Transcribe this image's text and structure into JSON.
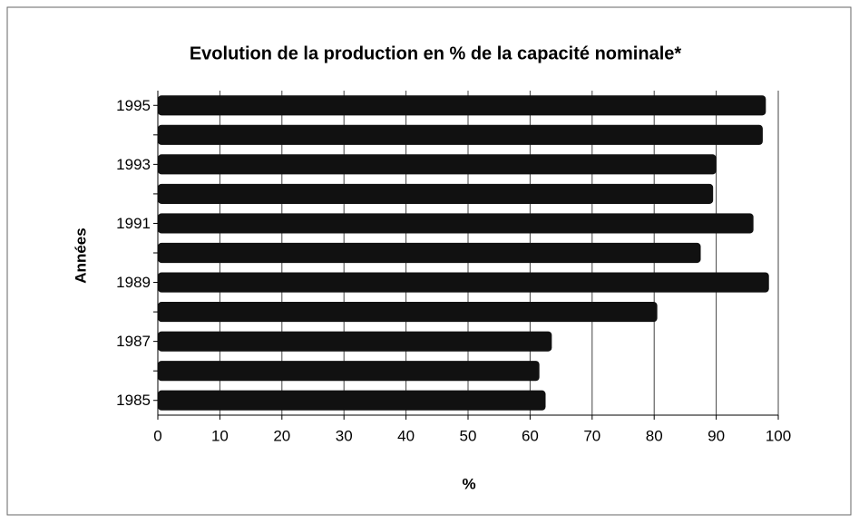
{
  "chart_data": {
    "type": "bar",
    "orientation": "horizontal",
    "title": "Evolution de la production en % de la capacité nominale*",
    "x_label": "%",
    "y_label": "Années",
    "categories": [
      "1985",
      null,
      "1987",
      null,
      "1989",
      null,
      "1991",
      null,
      "1993",
      null,
      "1995"
    ],
    "values": [
      62.5,
      61.5,
      63.5,
      80.5,
      98.5,
      87.5,
      96,
      89.5,
      90,
      97.5,
      98
    ],
    "color": "#111111",
    "xlim": [
      0,
      100
    ],
    "xticks": [
      0,
      10,
      20,
      30,
      40,
      50,
      60,
      70,
      80,
      90,
      100
    ],
    "grid": true
  }
}
